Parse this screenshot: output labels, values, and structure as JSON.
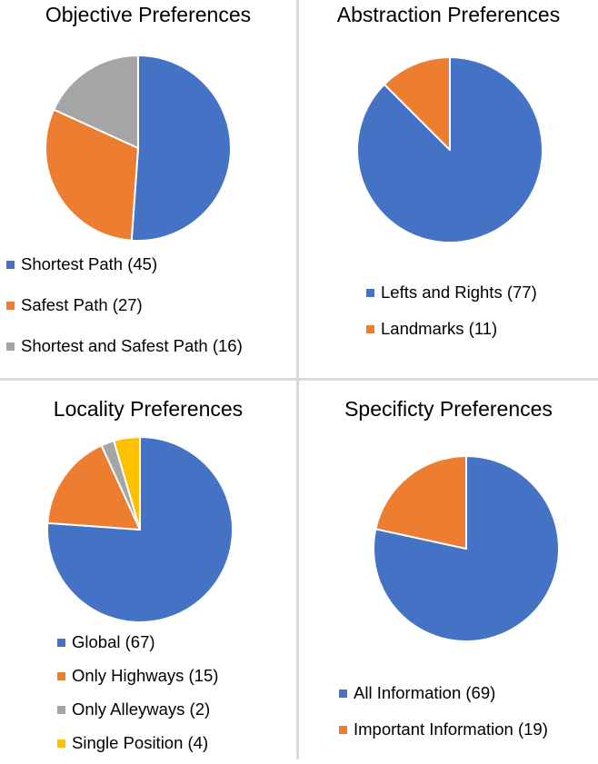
{
  "colors": {
    "blue": "#4472c4",
    "orange": "#ed7d31",
    "gray": "#a5a5a5",
    "yellow": "#ffc000"
  },
  "chart_data": [
    {
      "type": "pie",
      "title": "Objective Preferences",
      "categories": [
        "Shortest Path (45)",
        "Safest Path (27)",
        "Shortest and Safest Path (16)"
      ],
      "values": [
        45,
        27,
        16
      ],
      "colors": [
        "#4472c4",
        "#ed7d31",
        "#a5a5a5"
      ],
      "legend_position": "bottom"
    },
    {
      "type": "pie",
      "title": "Abstraction Preferences",
      "categories": [
        "Lefts and Rights (77)",
        "Landmarks (11)"
      ],
      "values": [
        77,
        11
      ],
      "colors": [
        "#4472c4",
        "#ed7d31"
      ],
      "legend_position": "bottom"
    },
    {
      "type": "pie",
      "title": "Locality Preferences",
      "categories": [
        "Global (67)",
        "Only Highways (15)",
        "Only Alleyways (2)",
        "Single Position (4)"
      ],
      "values": [
        67,
        15,
        2,
        4
      ],
      "colors": [
        "#4472c4",
        "#ed7d31",
        "#a5a5a5",
        "#ffc000"
      ],
      "legend_position": "bottom"
    },
    {
      "type": "pie",
      "title": "Specificty Preferences",
      "categories": [
        "All Information (69)",
        "Important Information (19)"
      ],
      "values": [
        69,
        19
      ],
      "colors": [
        "#4472c4",
        "#ed7d31"
      ],
      "legend_position": "bottom"
    }
  ]
}
